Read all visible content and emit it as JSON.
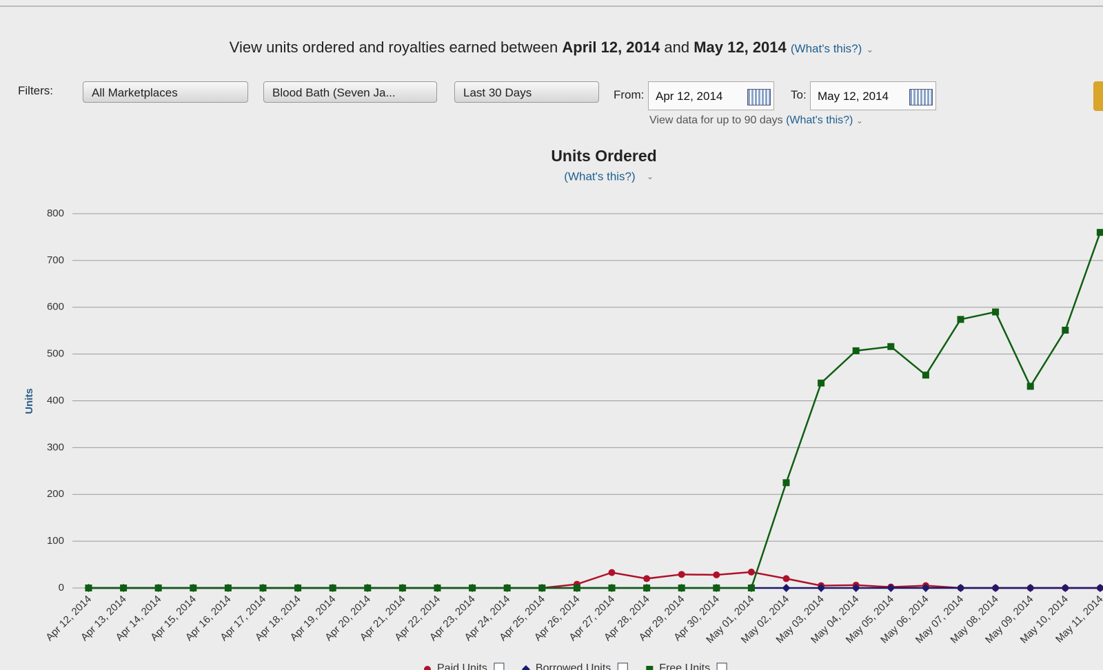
{
  "header": {
    "intro": "View units ordered and royalties earned between",
    "start": "April 12, 2014",
    "joiner": "and",
    "end": "May 12, 2014",
    "help": "(What's this?)"
  },
  "filters": {
    "label": "Filters:",
    "marketplace": "All Marketplaces",
    "book": "Blood Bath (Seven Ja...",
    "range": "Last 30 Days",
    "from_label": "From:",
    "from": "Apr 12, 2014",
    "to_label": "To:",
    "to": "May 12, 2014",
    "note": "View data for up to 90 days",
    "note_help": "(What's this?)"
  },
  "chart_data": {
    "type": "line",
    "title": "Units Ordered",
    "subtitle": "(What's this?)",
    "y_label": "Units",
    "categories": [
      "Apr 12, 2014",
      "Apr 13, 2014",
      "Apr 14, 2014",
      "Apr 15, 2014",
      "Apr 16, 2014",
      "Apr 17, 2014",
      "Apr 18, 2014",
      "Apr 19, 2014",
      "Apr 20, 2014",
      "Apr 21, 2014",
      "Apr 22, 2014",
      "Apr 23, 2014",
      "Apr 24, 2014",
      "Apr 25, 2014",
      "Apr 26, 2014",
      "Apr 27, 2014",
      "Apr 28, 2014",
      "Apr 29, 2014",
      "Apr 30, 2014",
      "May 01, 2014",
      "May 02, 2014",
      "May 03, 2014",
      "May 04, 2014",
      "May 05, 2014",
      "May 06, 2014",
      "May 07, 2014",
      "May 08, 2014",
      "May 09, 2014",
      "May 10, 2014",
      "May 11, 2014"
    ],
    "series": [
      {
        "name": "Paid Units",
        "color": "#b0102a",
        "marker": "circle",
        "values": [
          0,
          0,
          0,
          0,
          0,
          0,
          0,
          0,
          0,
          0,
          0,
          0,
          0,
          0,
          8,
          33,
          20,
          29,
          28,
          34,
          20,
          5,
          6,
          2,
          5,
          0,
          0,
          0,
          0,
          0
        ]
      },
      {
        "name": "Borrowed Units",
        "color": "#1a1a6e",
        "marker": "diamond",
        "values": [
          0,
          0,
          0,
          0,
          0,
          0,
          0,
          0,
          0,
          0,
          0,
          0,
          0,
          0,
          0,
          0,
          0,
          0,
          0,
          0,
          0,
          0,
          0,
          0,
          0,
          0,
          0,
          0,
          0,
          0
        ]
      },
      {
        "name": "Free Units",
        "color": "#0f5e12",
        "marker": "square",
        "values": [
          0,
          0,
          0,
          0,
          0,
          0,
          0,
          0,
          0,
          0,
          0,
          0,
          0,
          0,
          0,
          0,
          0,
          0,
          0,
          0,
          225,
          438,
          507,
          516,
          455,
          574,
          590,
          431,
          551,
          760
        ]
      }
    ],
    "ylim": [
      0,
      800
    ],
    "yticks": [
      0,
      100,
      200,
      300,
      400,
      500,
      600,
      700,
      800
    ],
    "grid": true
  }
}
